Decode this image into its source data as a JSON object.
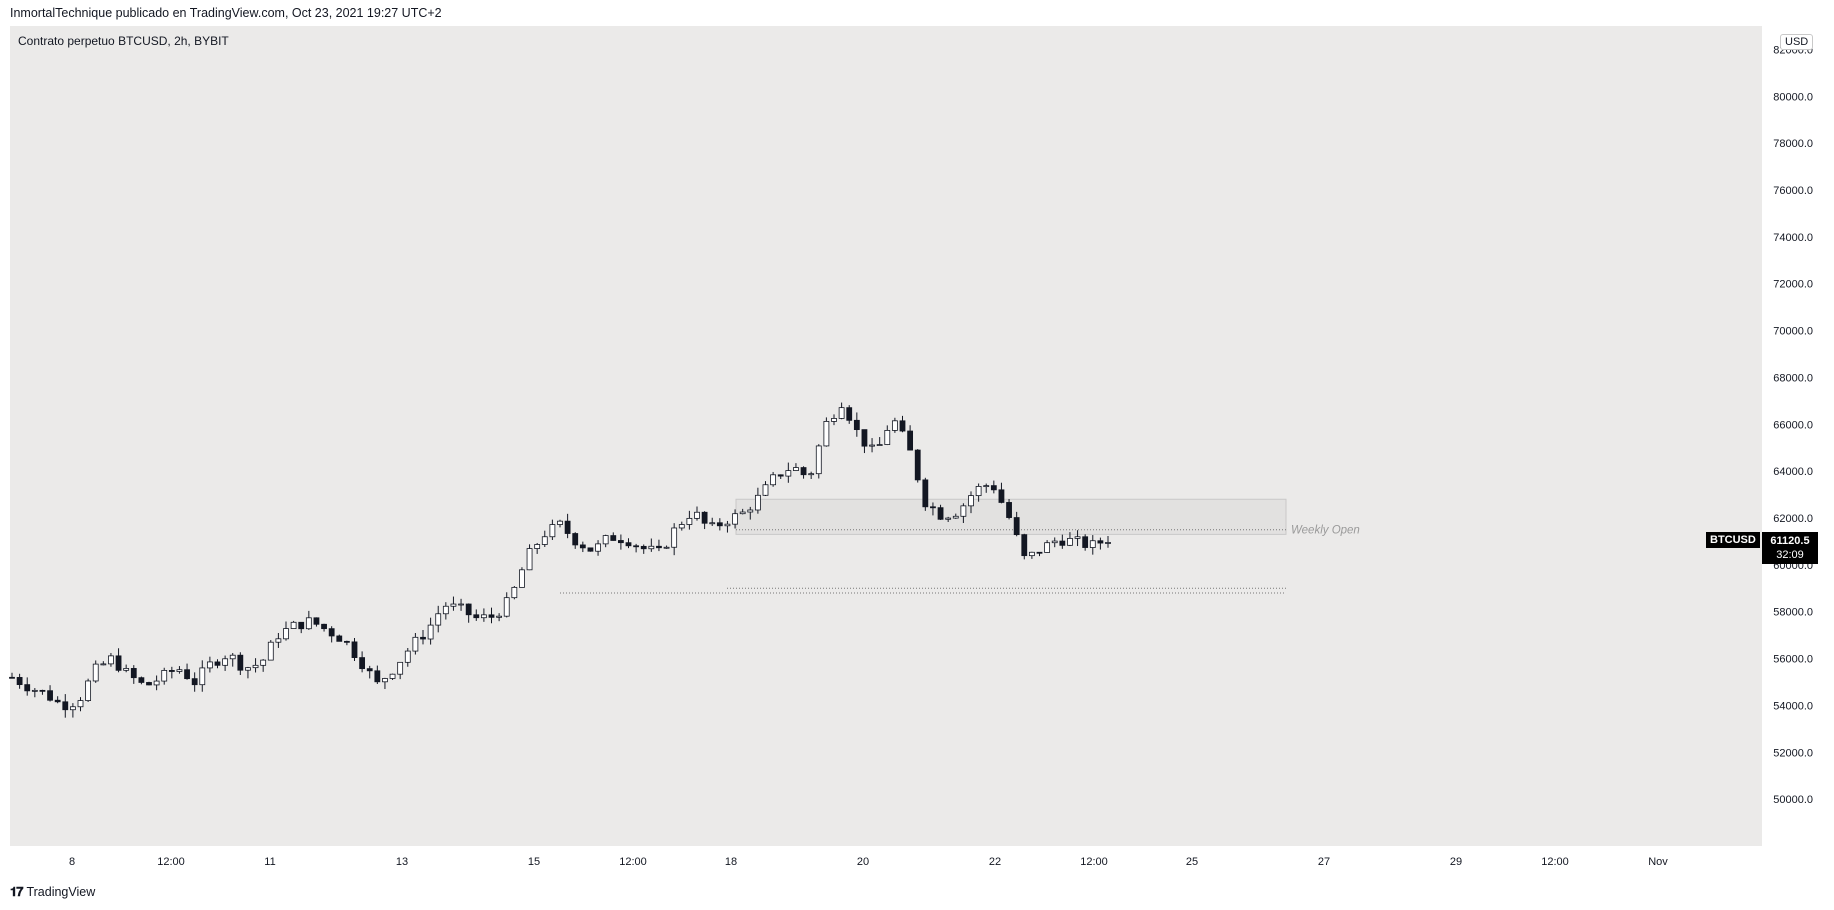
{
  "header": {
    "published_by": "InmortalTechnique publicado en TradingView.com, Oct 23, 2021 19:27 UTC+2"
  },
  "chart_title": "Contrato perpetuo BTCUSD, 2h, BYBIT",
  "currency_label": "USD",
  "footer": {
    "brand": "TradingView"
  },
  "last_price": {
    "symbol": "BTCUSD",
    "price": "61120.5",
    "countdown": "32:09"
  },
  "annotation": {
    "weekly_open_label": "Weekly Open"
  },
  "colors": {
    "background": "#ebeae9",
    "candle_up": "#ffffff",
    "candle_down": "#131722",
    "wick": "#131722",
    "zone": "#dcdbdb"
  },
  "chart_data": {
    "type": "candlestick",
    "title": "Contrato perpetuo BTCUSD, 2h, BYBIT",
    "ylim": [
      48000,
      83000
    ],
    "y_ticks": [
      "50000.0",
      "52000.0",
      "54000.0",
      "56000.0",
      "58000.0",
      "60000.0",
      "62000.0",
      "64000.0",
      "66000.0",
      "68000.0",
      "70000.0",
      "72000.0",
      "74000.0",
      "76000.0",
      "78000.0",
      "80000.0",
      "82000.0"
    ],
    "x_ticks": [
      "8",
      "12:00",
      "11",
      "13",
      "15",
      "12:00",
      "18",
      "20",
      "22",
      "12:00",
      "25",
      "27",
      "29",
      "12:00",
      "Nov"
    ],
    "grid": false,
    "series": [
      {
        "name": "BTCUSD",
        "close_path": [
          55200,
          54800,
          54500,
          54000,
          54200,
          55500,
          56000,
          55300,
          54800,
          55200,
          55600,
          55000,
          55800,
          56200,
          55600,
          55800,
          57000,
          57400,
          57600,
          57200,
          56800,
          55900,
          54900,
          55600,
          56500,
          57200,
          58300,
          58100,
          57700,
          57800,
          58500,
          60300,
          61300,
          61700,
          61000,
          60600,
          61200,
          61100,
          60700,
          60500,
          61600,
          62300,
          61500,
          61900,
          62200,
          62900,
          63800,
          64200,
          63700,
          66000,
          67000,
          65500,
          64700,
          66300,
          65000,
          62700,
          62100,
          62300,
          63200,
          63500,
          62100,
          60200,
          60700,
          61100,
          61000,
          60800,
          61120
        ]
      }
    ],
    "zone": {
      "top": 62800,
      "bottom": 61300
    },
    "weekly_open_level": 61500,
    "support_levels": [
      59000,
      58800
    ]
  }
}
